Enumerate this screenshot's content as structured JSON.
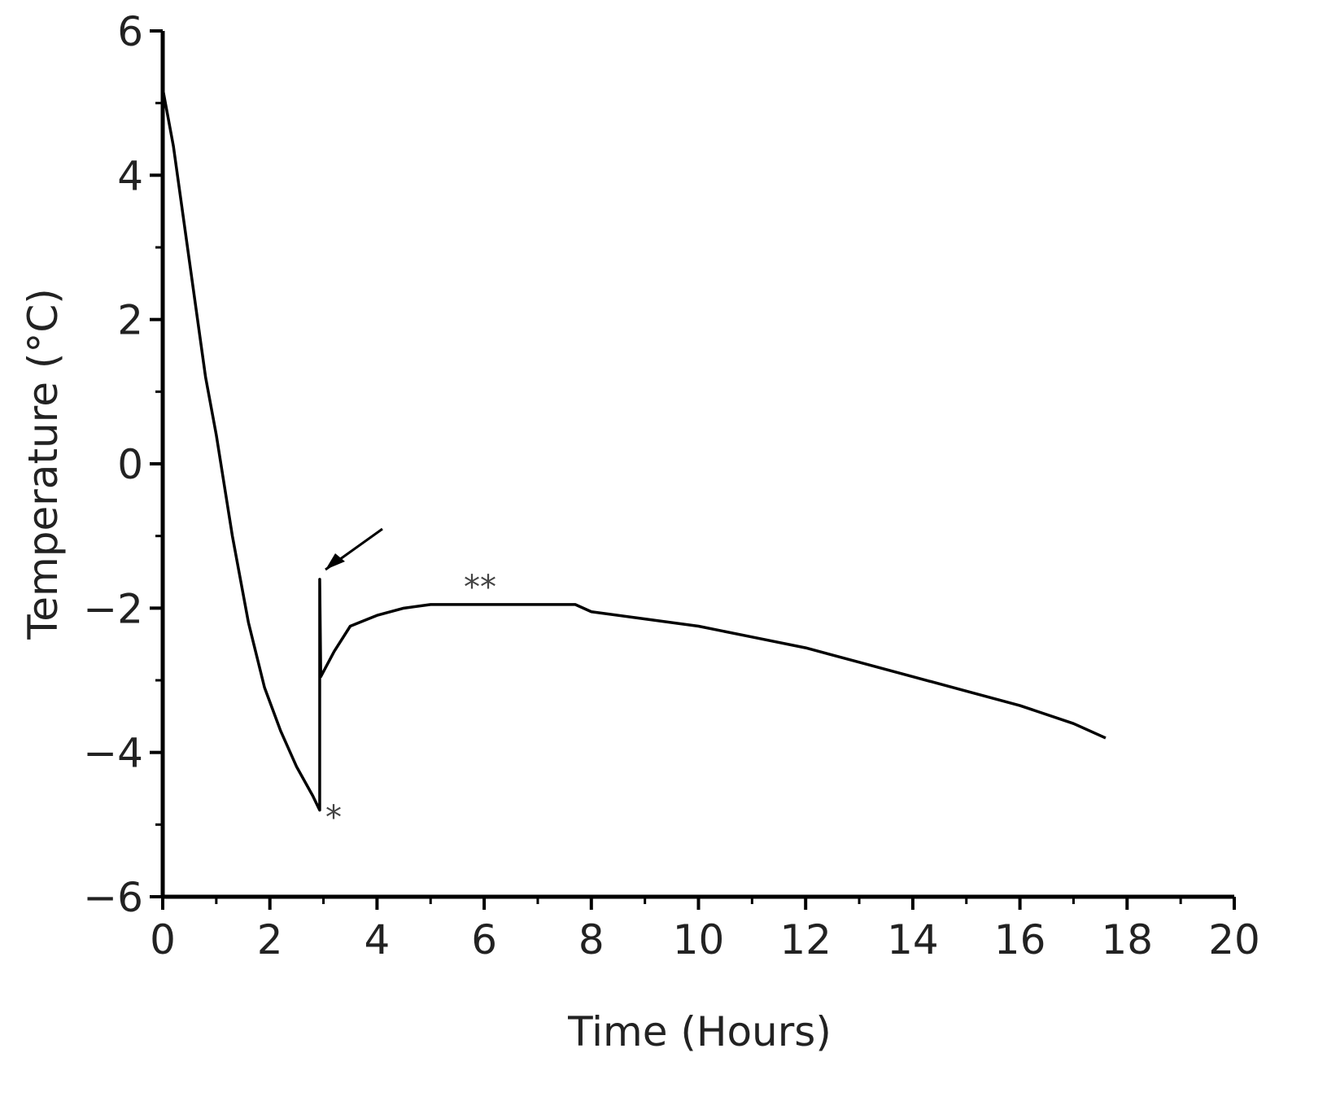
{
  "chart_data": {
    "type": "line",
    "x_label": "Time (Hours)",
    "y_label": "Temperature (°C)",
    "xlim": [
      0,
      20
    ],
    "ylim": [
      -6,
      6
    ],
    "xticks": [
      0,
      2,
      4,
      6,
      8,
      10,
      12,
      14,
      16,
      18,
      20
    ],
    "yticks": [
      {
        "value": -6,
        "label": "−6"
      },
      {
        "value": -4,
        "label": "−4"
      },
      {
        "value": -2,
        "label": "−2"
      },
      0,
      2,
      4,
      6
    ],
    "series": [
      {
        "color": "#000000",
        "x": [
          0,
          0.2,
          0.5,
          0.8,
          1.0,
          1.3,
          1.6,
          1.9,
          2.2,
          2.5,
          2.8,
          2.93,
          2.93,
          2.95,
          3.2,
          3.5,
          4,
          4.5,
          5,
          6,
          7,
          7.7,
          8,
          9,
          10,
          11,
          12,
          13,
          14,
          15,
          16,
          17,
          17.6
        ],
        "values": [
          5.2,
          4.4,
          2.8,
          1.2,
          0.4,
          -1.0,
          -2.2,
          -3.1,
          -3.7,
          -4.2,
          -4.6,
          -4.8,
          -1.6,
          -2.95,
          -2.6,
          -2.25,
          -2.1,
          -2.0,
          -1.95,
          -1.95,
          -1.95,
          -1.95,
          -2.05,
          -2.15,
          -2.25,
          -2.4,
          -2.55,
          -2.75,
          -2.95,
          -3.15,
          -3.35,
          -3.6,
          -3.8
        ]
      }
    ],
    "annotations": [
      "*",
      "**"
    ]
  }
}
